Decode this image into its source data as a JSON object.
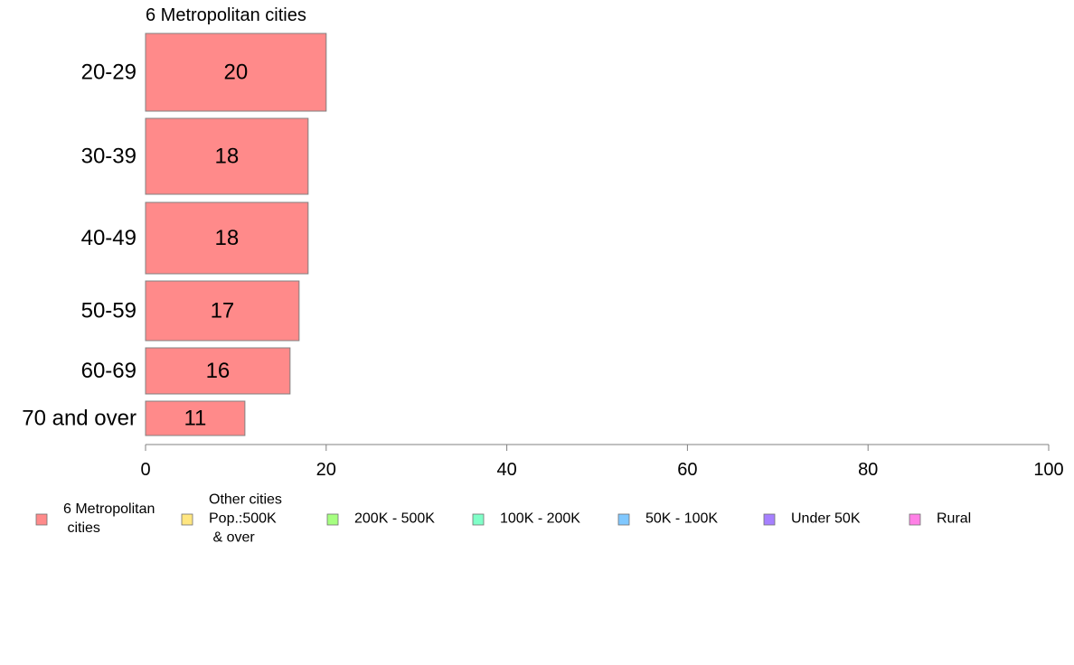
{
  "chart_data": {
    "type": "bar",
    "orientation": "horizontal",
    "title": "6 Metropolitan cities",
    "categories": [
      "20-29",
      "30-39",
      "40-49",
      "50-59",
      "60-69",
      "70 and over"
    ],
    "values": [
      20,
      18,
      18,
      17,
      16,
      11
    ],
    "value_labels": [
      "20",
      "18",
      "18",
      "17",
      "16",
      "11"
    ],
    "bar_color": "#FF8A8A",
    "xlabel": "",
    "ylabel": "",
    "xlim": [
      0,
      100
    ],
    "xticks": [
      0,
      20,
      40,
      60,
      80,
      100
    ],
    "xtick_labels": [
      "0",
      "20",
      "40",
      "60",
      "80",
      "100"
    ],
    "grid": false,
    "legend_position": "bottom",
    "legend": [
      {
        "lines": [
          "6 Metropolitan",
          " cities"
        ],
        "color": "#FF8A8A"
      },
      {
        "lines": [
          "Other cities",
          "Pop.:500K",
          " & over"
        ],
        "color": "#FFE680"
      },
      {
        "lines": [
          "200K - 500K"
        ],
        "color": "#A6FF80"
      },
      {
        "lines": [
          "100K - 200K"
        ],
        "color": "#80FFC8"
      },
      {
        "lines": [
          "50K - 100K"
        ],
        "color": "#80C8FF"
      },
      {
        "lines": [
          "Under 50K"
        ],
        "color": "#A680FF"
      },
      {
        "lines": [
          "Rural"
        ],
        "color": "#FF80E6"
      }
    ]
  }
}
